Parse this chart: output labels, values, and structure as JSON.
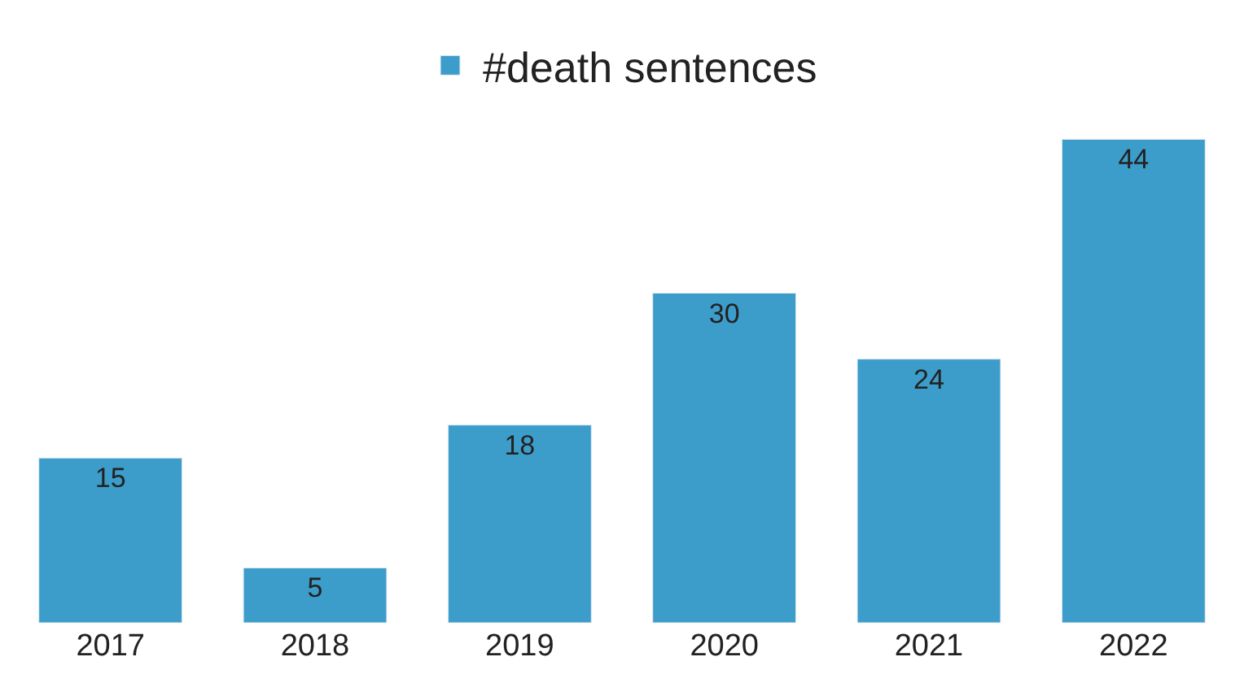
{
  "chart_data": {
    "type": "bar",
    "categories": [
      "2017",
      "2018",
      "2019",
      "2020",
      "2021",
      "2022"
    ],
    "series": [
      {
        "name": "#death sentences",
        "color": "#3c9dca",
        "values": [
          15,
          5,
          18,
          30,
          24,
          44
        ]
      }
    ],
    "data_labels": true,
    "legend": "top",
    "tick_labels": "x"
  }
}
